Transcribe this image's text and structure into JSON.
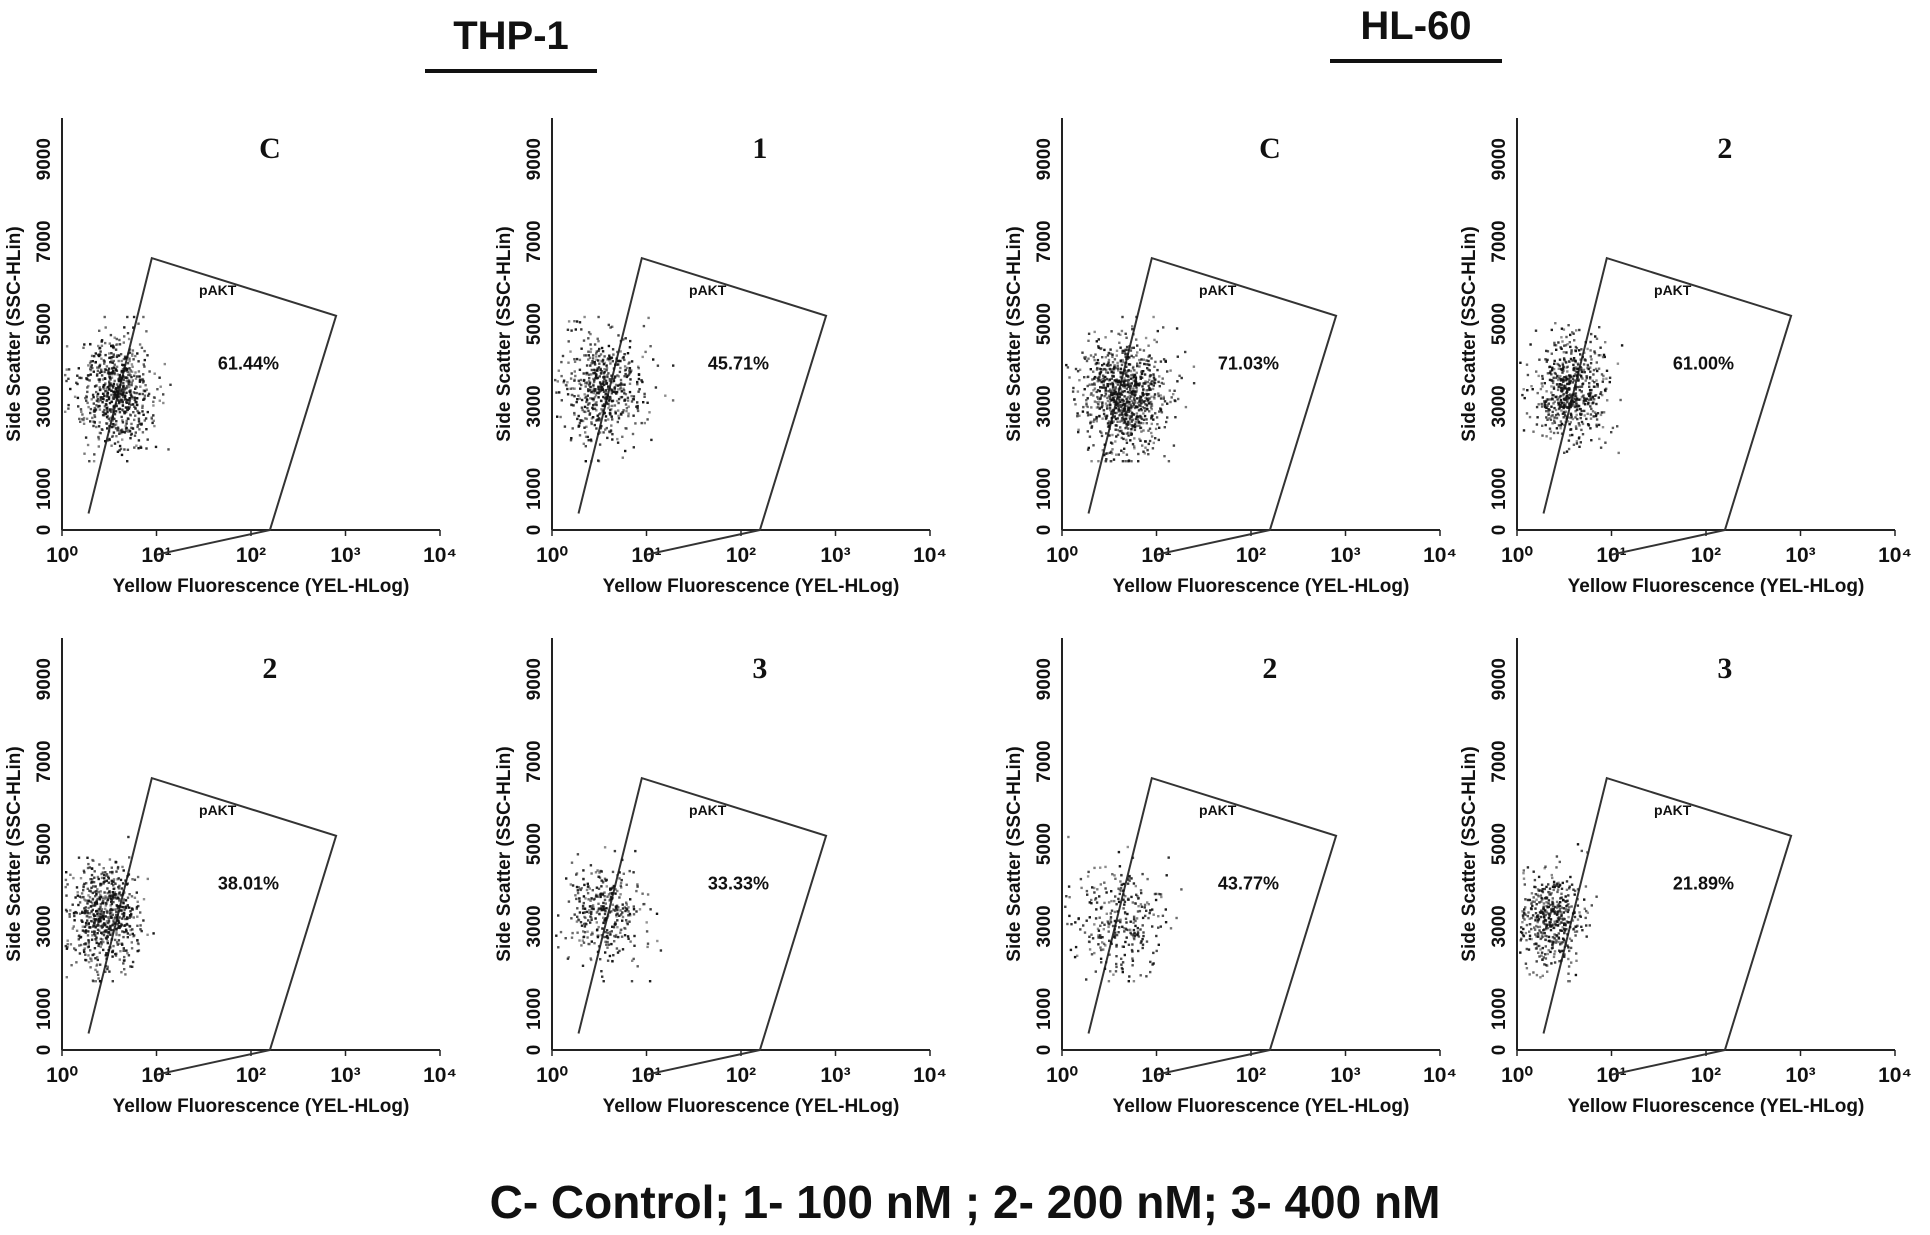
{
  "groups": [
    {
      "name": "THP-1"
    },
    {
      "name": "HL-60"
    }
  ],
  "legend": "C- Control;  1- 100 nM ; 2- 200 nM; 3- 400 nM",
  "axes": {
    "xlabel": "Yellow Fluorescence (YEL-HLog)",
    "ylabel": "Side Scatter (SSC-HLin)",
    "x_ticks": [
      "10⁰",
      "10¹",
      "10²",
      "10³",
      "10⁴"
    ],
    "y_ticks": [
      "0",
      "1000",
      "3000",
      "5000",
      "7000",
      "9000"
    ]
  },
  "colors": {
    "points": "#111111",
    "gate": "#333333"
  },
  "chart_data": [
    {
      "type": "scatter",
      "group": "THP-1",
      "title": "C",
      "gate": "pAKT",
      "percent": "61.44%",
      "xscale": "log",
      "xlim": [
        1,
        10000
      ],
      "ylim": [
        0,
        10000
      ],
      "cluster": {
        "x_center_log": 0.55,
        "x_spread_log": 0.35,
        "y_center": 3400,
        "y_spread": 900,
        "n": 700
      }
    },
    {
      "type": "scatter",
      "group": "THP-1",
      "title": "1",
      "gate": "pAKT",
      "percent": "45.71%",
      "xscale": "log",
      "xlim": [
        1,
        10000
      ],
      "ylim": [
        0,
        10000
      ],
      "cluster": {
        "x_center_log": 0.55,
        "x_spread_log": 0.4,
        "y_center": 3500,
        "y_spread": 850,
        "n": 550
      }
    },
    {
      "type": "scatter",
      "group": "HL-60",
      "title": "C",
      "gate": "pAKT",
      "percent": "71.03%",
      "xscale": "log",
      "xlim": [
        1,
        10000
      ],
      "ylim": [
        0,
        10000
      ],
      "cluster": {
        "x_center_log": 0.65,
        "x_spread_log": 0.42,
        "y_center": 3300,
        "y_spread": 900,
        "n": 900
      }
    },
    {
      "type": "scatter",
      "group": "HL-60",
      "title": "2",
      "gate": "pAKT",
      "percent": "61.00%",
      "xscale": "log",
      "xlim": [
        1,
        10000
      ],
      "ylim": [
        0,
        10000
      ],
      "cluster": {
        "x_center_log": 0.55,
        "x_spread_log": 0.35,
        "y_center": 3400,
        "y_spread": 850,
        "n": 600
      }
    },
    {
      "type": "scatter",
      "group": "THP-1",
      "title": "2",
      "gate": "pAKT",
      "percent": "38.01%",
      "xscale": "log",
      "xlim": [
        1,
        10000
      ],
      "ylim": [
        0,
        10000
      ],
      "cluster": {
        "x_center_log": 0.45,
        "x_spread_log": 0.33,
        "y_center": 3300,
        "y_spread": 850,
        "n": 650
      }
    },
    {
      "type": "scatter",
      "group": "THP-1",
      "title": "3",
      "gate": "pAKT",
      "percent": "33.33%",
      "xscale": "log",
      "xlim": [
        1,
        10000
      ],
      "ylim": [
        0,
        10000
      ],
      "cluster": {
        "x_center_log": 0.55,
        "x_spread_log": 0.4,
        "y_center": 3400,
        "y_spread": 800,
        "n": 350
      }
    },
    {
      "type": "scatter",
      "group": "HL-60",
      "title": "2",
      "gate": "pAKT",
      "percent": "43.77%",
      "xscale": "log",
      "xlim": [
        1,
        10000
      ],
      "ylim": [
        0,
        10000
      ],
      "cluster": {
        "x_center_log": 0.6,
        "x_spread_log": 0.45,
        "y_center": 3200,
        "y_spread": 900,
        "n": 300
      }
    },
    {
      "type": "scatter",
      "group": "HL-60",
      "title": "3",
      "gate": "pAKT",
      "percent": "21.89%",
      "xscale": "log",
      "xlim": [
        1,
        10000
      ],
      "ylim": [
        0,
        10000
      ],
      "cluster": {
        "x_center_log": 0.35,
        "x_spread_log": 0.3,
        "y_center": 3200,
        "y_spread": 800,
        "n": 450
      }
    }
  ]
}
